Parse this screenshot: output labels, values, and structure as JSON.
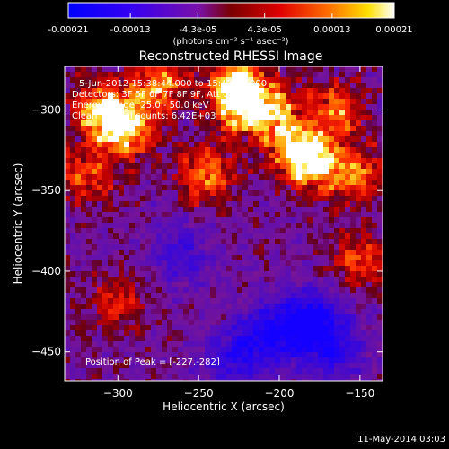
{
  "chart_data": {
    "type": "heatmap",
    "title": "Reconstructed RHESSI Image",
    "xlabel": "Heliocentric X (arcsec)",
    "ylabel": "Heliocentric Y (arcsec)",
    "xlim": [
      -333,
      -136
    ],
    "ylim": [
      -468,
      -273
    ],
    "x_ticks": [
      -300,
      -250,
      -200,
      -150
    ],
    "y_ticks": [
      -300,
      -350,
      -400,
      -450
    ],
    "colorbar": {
      "range": [
        -0.00021,
        0.00021
      ],
      "tick_labels": [
        "-0.00021",
        "-0.00013",
        "-4.3e-05",
        "4.3e-05",
        "0.00013",
        "0.00021"
      ],
      "tick_values": [
        -0.00021,
        -0.00013,
        -4.3e-05,
        4.3e-05,
        0.00013,
        0.00021
      ],
      "unit_label": "(photons cm⁻² s⁻¹ asec⁻²)"
    },
    "colors": {
      "low": "#0000ff",
      "mid_low": "#6a00d8",
      "zero": "#5a0a3a",
      "mid_high": "#ff2000",
      "high": "#ffffff"
    },
    "annotations": [
      "5-Jun-2012 15:38:44.000 to 15:42:38.000",
      "Detectors: 3F 5F 6F 7F 8F 9F, Att 0",
      "Energy Range: 25.0 - 50.0 keV",
      "Clean     Total counts: 6.42E+03",
      "Position of Peak = [-227,-282]"
    ],
    "peak_position": [
      -227,
      -282
    ],
    "sources": [
      {
        "x": -310,
        "y": -300,
        "strength": 0.9
      },
      {
        "x": -295,
        "y": -312,
        "strength": 1.0
      },
      {
        "x": -275,
        "y": -285,
        "strength": 0.8
      },
      {
        "x": -245,
        "y": -340,
        "strength": 0.75
      },
      {
        "x": -227,
        "y": -282,
        "strength": 1.0
      },
      {
        "x": -205,
        "y": -300,
        "strength": 0.85
      },
      {
        "x": -190,
        "y": -325,
        "strength": 0.9
      },
      {
        "x": -175,
        "y": -335,
        "strength": 0.8
      },
      {
        "x": -165,
        "y": -300,
        "strength": 0.7
      },
      {
        "x": -150,
        "y": -340,
        "strength": 0.6
      },
      {
        "x": -320,
        "y": -340,
        "strength": 0.6
      },
      {
        "x": -300,
        "y": -420,
        "strength": 0.5
      },
      {
        "x": -150,
        "y": -393,
        "strength": 0.6
      },
      {
        "x": -225,
        "y": -300,
        "strength": 0.7
      }
    ],
    "cool_regions": [
      {
        "x": -205,
        "y": -440,
        "strength": 0.8
      },
      {
        "x": -180,
        "y": -430,
        "strength": 0.9
      },
      {
        "x": -230,
        "y": -455,
        "strength": 0.6
      },
      {
        "x": -260,
        "y": -390,
        "strength": 0.5
      },
      {
        "x": -165,
        "y": -450,
        "strength": 0.6
      }
    ]
  },
  "footer": {
    "date": "11-May-2014 03:03"
  }
}
